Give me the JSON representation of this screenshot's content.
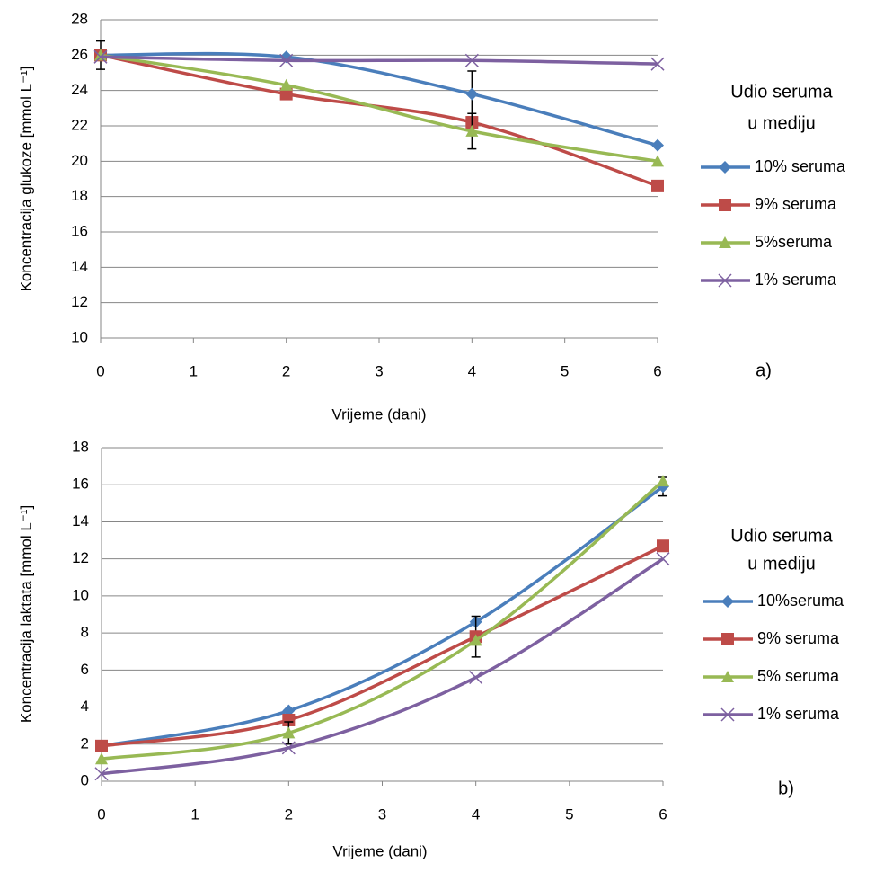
{
  "chart_data": [
    {
      "type": "line",
      "annotation": "a)",
      "x_label": "Vrijeme (dani)",
      "y_label": "Koncentracija glukoze [mmol L⁻¹]",
      "legend_title": [
        "Udio seruma",
        "u mediju"
      ],
      "x": [
        0,
        2,
        4,
        6
      ],
      "xlim": [
        0,
        6
      ],
      "xticks": [
        0,
        1,
        2,
        3,
        4,
        5,
        6
      ],
      "ylim": [
        10,
        28
      ],
      "yticks": [
        10,
        12,
        14,
        16,
        18,
        20,
        22,
        24,
        26,
        28
      ],
      "grid": true,
      "legend": "right",
      "series": [
        {
          "name": "10% seruma",
          "color": "#4a7ebb",
          "marker": "diamond",
          "values": [
            26,
            25.9,
            23.8,
            20.9
          ],
          "errors": [
            0.8,
            null,
            1.3,
            null
          ]
        },
        {
          "name": "9% seruma",
          "color": "#be4b48",
          "marker": "square",
          "values": [
            26,
            23.8,
            22.2,
            18.6
          ],
          "errors": [
            null,
            0.3,
            null,
            null
          ]
        },
        {
          "name": "5%seruma",
          "color": "#98b954",
          "marker": "triangle",
          "values": [
            26,
            24.3,
            21.7,
            20.0
          ],
          "errors": [
            null,
            null,
            1.0,
            null
          ]
        },
        {
          "name": "1% seruma",
          "color": "#7d60a0",
          "marker": "x",
          "values": [
            25.9,
            25.7,
            25.7,
            25.5
          ],
          "errors": [
            null,
            null,
            null,
            null
          ]
        }
      ]
    },
    {
      "type": "line",
      "annotation": "b)",
      "x_label": "Vrijeme (dani)",
      "y_label": "Koncentracija laktata [mmol L⁻¹]",
      "legend_title": [
        "Udio seruma",
        "u mediju"
      ],
      "x": [
        0,
        2,
        4,
        6
      ],
      "xlim": [
        0,
        6
      ],
      "xticks": [
        0,
        1,
        2,
        3,
        4,
        5,
        6
      ],
      "ylim": [
        0,
        18
      ],
      "yticks": [
        0,
        2,
        4,
        6,
        8,
        10,
        12,
        14,
        16,
        18
      ],
      "grid": true,
      "legend": "right",
      "series": [
        {
          "name": "10%seruma",
          "color": "#4a7ebb",
          "marker": "diamond",
          "values": [
            1.9,
            3.8,
            8.6,
            15.9
          ],
          "errors": [
            null,
            null,
            null,
            0.5
          ]
        },
        {
          "name": "9% seruma",
          "color": "#be4b48",
          "marker": "square",
          "values": [
            1.9,
            3.3,
            7.8,
            12.7
          ],
          "errors": [
            null,
            null,
            1.1,
            null
          ]
        },
        {
          "name": "5% seruma",
          "color": "#98b954",
          "marker": "triangle",
          "values": [
            1.2,
            2.6,
            7.6,
            16.2
          ],
          "errors": [
            null,
            0.6,
            null,
            null
          ]
        },
        {
          "name": "1% seruma",
          "color": "#7d60a0",
          "marker": "x",
          "values": [
            0.4,
            1.8,
            5.6,
            12.0
          ],
          "errors": [
            null,
            null,
            null,
            null
          ]
        }
      ]
    }
  ]
}
